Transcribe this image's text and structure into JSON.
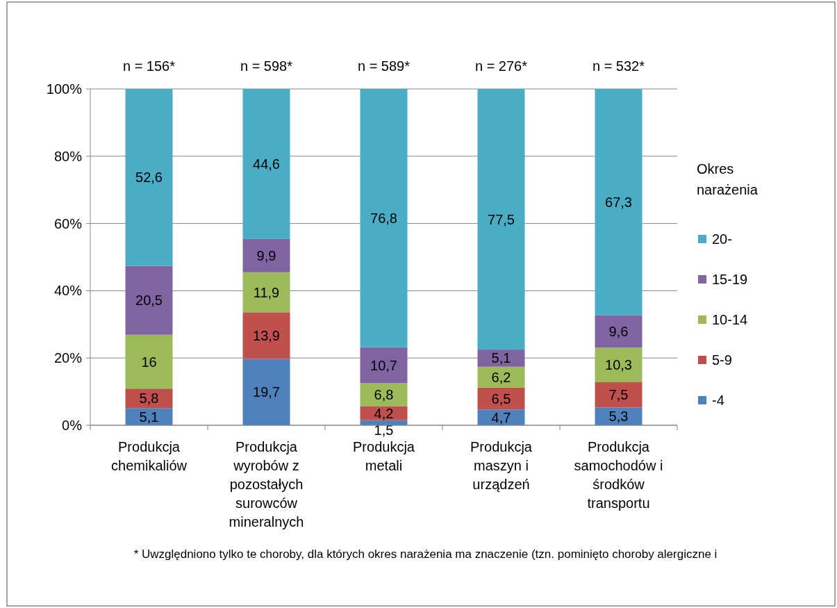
{
  "chart_data": {
    "type": "bar",
    "stacked": true,
    "legend": "right",
    "legend_title": "Okres narażenia",
    "grid": "y",
    "categories": [
      "Produkcja chemikaliów",
      "Produkcja wyrobów z pozostałych surowców mineralnych",
      "Produkcja metali",
      "Produkcja maszyn i urządzeń",
      "Produkcja samochodów i środków transportu"
    ],
    "ylim": [
      0,
      100
    ],
    "yticks": [
      {
        "value": 0,
        "label": "0%"
      },
      {
        "value": 20,
        "label": "20%"
      },
      {
        "value": 40,
        "label": "40%"
      },
      {
        "value": 60,
        "label": "60%"
      },
      {
        "value": 80,
        "label": "80%"
      },
      {
        "value": 100,
        "label": "100%"
      }
    ],
    "series": [
      {
        "name": "-4",
        "color": "#4f81bd",
        "values": [
          5.1,
          19.7,
          1.5,
          4.7,
          5.3
        ],
        "value_labels": [
          "5,1",
          "19,7",
          "1,5",
          "4,7",
          "5,3"
        ]
      },
      {
        "name": "5-9",
        "color": "#c0504d",
        "values": [
          5.8,
          13.9,
          4.2,
          6.5,
          7.5
        ],
        "value_labels": [
          "5,8",
          "13,9",
          "4,2",
          "6,5",
          "7,5"
        ]
      },
      {
        "name": "10-14",
        "color": "#9bbb59",
        "values": [
          16,
          11.9,
          6.8,
          6.2,
          10.3
        ],
        "value_labels": [
          "16",
          "11,9",
          "6,8",
          "6,2",
          "10,3"
        ]
      },
      {
        "name": "15-19",
        "color": "#8064a2",
        "values": [
          20.5,
          9.9,
          10.7,
          5.1,
          9.6
        ],
        "value_labels": [
          "20,5",
          "9,9",
          "10,7",
          "5,1",
          "9,6"
        ]
      },
      {
        "name": "20-",
        "color": "#4bacc6",
        "values": [
          52.6,
          44.6,
          76.8,
          77.5,
          67.3
        ],
        "value_labels": [
          "52,6",
          "44,6",
          "76,8",
          "77,5",
          "67,3"
        ]
      }
    ],
    "annotations": [
      {
        "text": "n = 156*",
        "x": "Produkcja chemikaliów",
        "y": 100
      },
      {
        "text": "n = 598*",
        "x": "Produkcja wyrobów z pozostałych surowców mineralnych",
        "y": 100
      },
      {
        "text": "n = 589*",
        "x": "Produkcja metali",
        "y": 100
      },
      {
        "text": "n = 276*",
        "x": "Produkcja maszyn i urządzeń",
        "y": 100
      },
      {
        "text": "n = 532*",
        "x": "Produkcja samochodów i środków transportu",
        "y": 100
      },
      "* Uwzględniono tylko te choroby, dla których okres narażenia ma znaczenie (tzn. pominięto  choroby  alergiczne  i"
    ]
  }
}
